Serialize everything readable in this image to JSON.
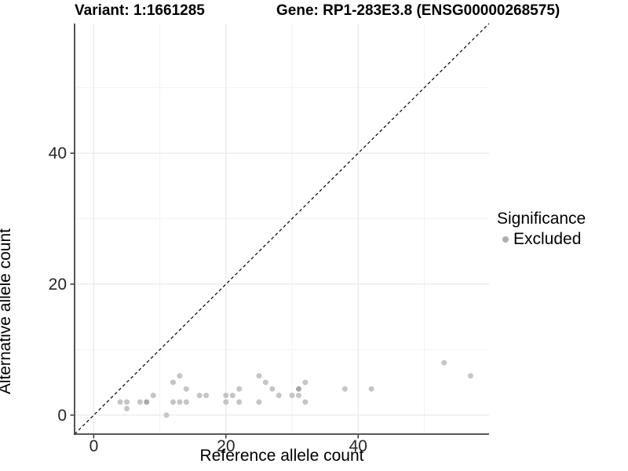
{
  "header": {
    "variant_title": "Variant: 1:1661285",
    "gene_title": "Gene: RP1-283E3.8 (ENSG00000268575)"
  },
  "legend": {
    "title": "Significance",
    "items": [
      {
        "label": "Excluded",
        "marker_color": "#aeaeae"
      }
    ]
  },
  "chart_data": {
    "type": "scatter",
    "xlabel": "Reference allele count",
    "ylabel": "Alternative allele count",
    "xlim": [
      -2.9,
      59.8
    ],
    "ylim": [
      -2.9,
      59.8
    ],
    "x_ticks": [
      0,
      20,
      40
    ],
    "y_ticks": [
      0,
      20,
      40
    ],
    "x_minor_ticks": [
      10,
      30,
      50
    ],
    "y_minor_ticks": [
      10,
      30,
      50
    ],
    "grid": "on",
    "legend_position": "right",
    "identity_line": {
      "style": "dashed",
      "from": [
        -2.9,
        -2.9
      ],
      "to": [
        59.8,
        59.8
      ],
      "color": "#000000"
    },
    "series": [
      {
        "name": "Excluded",
        "color": "#c5c5c5",
        "overlap_color": "#a8a8a8",
        "points": [
          {
            "x": 4,
            "y": 2
          },
          {
            "x": 5,
            "y": 2
          },
          {
            "x": 5,
            "y": 1
          },
          {
            "x": 7,
            "y": 2
          },
          {
            "x": 8,
            "y": 2,
            "n": 2
          },
          {
            "x": 9,
            "y": 3
          },
          {
            "x": 11,
            "y": 0
          },
          {
            "x": 12,
            "y": 2
          },
          {
            "x": 12,
            "y": 5
          },
          {
            "x": 13,
            "y": 2
          },
          {
            "x": 13,
            "y": 6
          },
          {
            "x": 14,
            "y": 2
          },
          {
            "x": 14,
            "y": 4
          },
          {
            "x": 16,
            "y": 3
          },
          {
            "x": 17,
            "y": 3
          },
          {
            "x": 20,
            "y": 2
          },
          {
            "x": 20,
            "y": 3
          },
          {
            "x": 21,
            "y": 3
          },
          {
            "x": 22,
            "y": 2
          },
          {
            "x": 22,
            "y": 4
          },
          {
            "x": 25,
            "y": 2
          },
          {
            "x": 25,
            "y": 6
          },
          {
            "x": 26,
            "y": 5
          },
          {
            "x": 27,
            "y": 4
          },
          {
            "x": 28,
            "y": 3
          },
          {
            "x": 30,
            "y": 3
          },
          {
            "x": 31,
            "y": 3
          },
          {
            "x": 31,
            "y": 4,
            "n": 2
          },
          {
            "x": 32,
            "y": 2
          },
          {
            "x": 32,
            "y": 5
          },
          {
            "x": 38,
            "y": 4
          },
          {
            "x": 42,
            "y": 4
          },
          {
            "x": 53,
            "y": 8
          },
          {
            "x": 57,
            "y": 6
          }
        ]
      }
    ],
    "style": {
      "major_grid_color": "#e7e7e7",
      "minor_grid_color": "#f2f2f2",
      "axis_line_color": "#404040",
      "tick_color": "#333333",
      "tick_label_color": "#262626"
    }
  }
}
